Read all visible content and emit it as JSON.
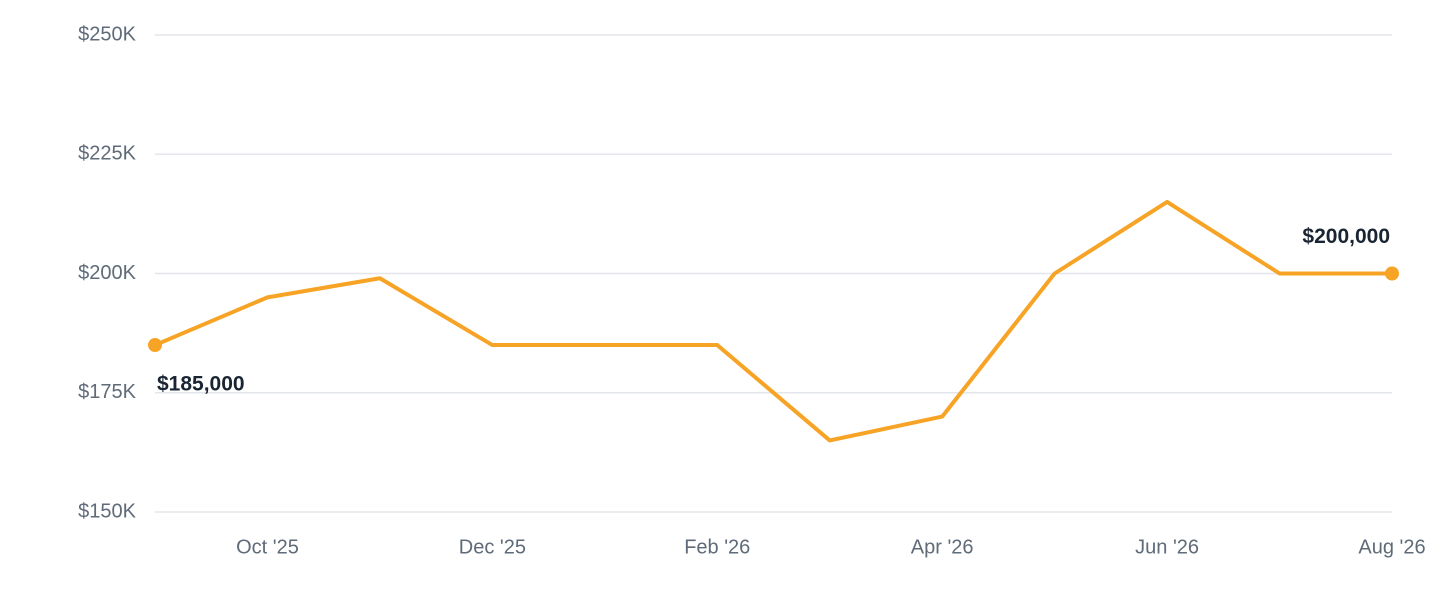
{
  "chart_data": {
    "type": "line",
    "categories": [
      null,
      "Oct '25",
      null,
      "Dec '25",
      null,
      "Feb '26",
      null,
      "Apr '26",
      null,
      "Jun '26",
      null,
      "Aug '26"
    ],
    "values": [
      185000,
      195000,
      199000,
      185000,
      185000,
      185000,
      165000,
      170000,
      200000,
      215000,
      200000,
      200000
    ],
    "value_labels": [
      "$185,000",
      null,
      null,
      null,
      null,
      null,
      null,
      null,
      null,
      null,
      null,
      "$200,000"
    ],
    "color": "#f7a325",
    "ylim": [
      150000,
      250000
    ],
    "yticks": [
      {
        "value": 150000,
        "label": "$150K"
      },
      {
        "value": 175000,
        "label": "$175K"
      },
      {
        "value": 200000,
        "label": "$200K"
      },
      {
        "value": 225000,
        "label": "$225K"
      },
      {
        "value": 250000,
        "label": "$250K"
      }
    ],
    "grid": true
  }
}
